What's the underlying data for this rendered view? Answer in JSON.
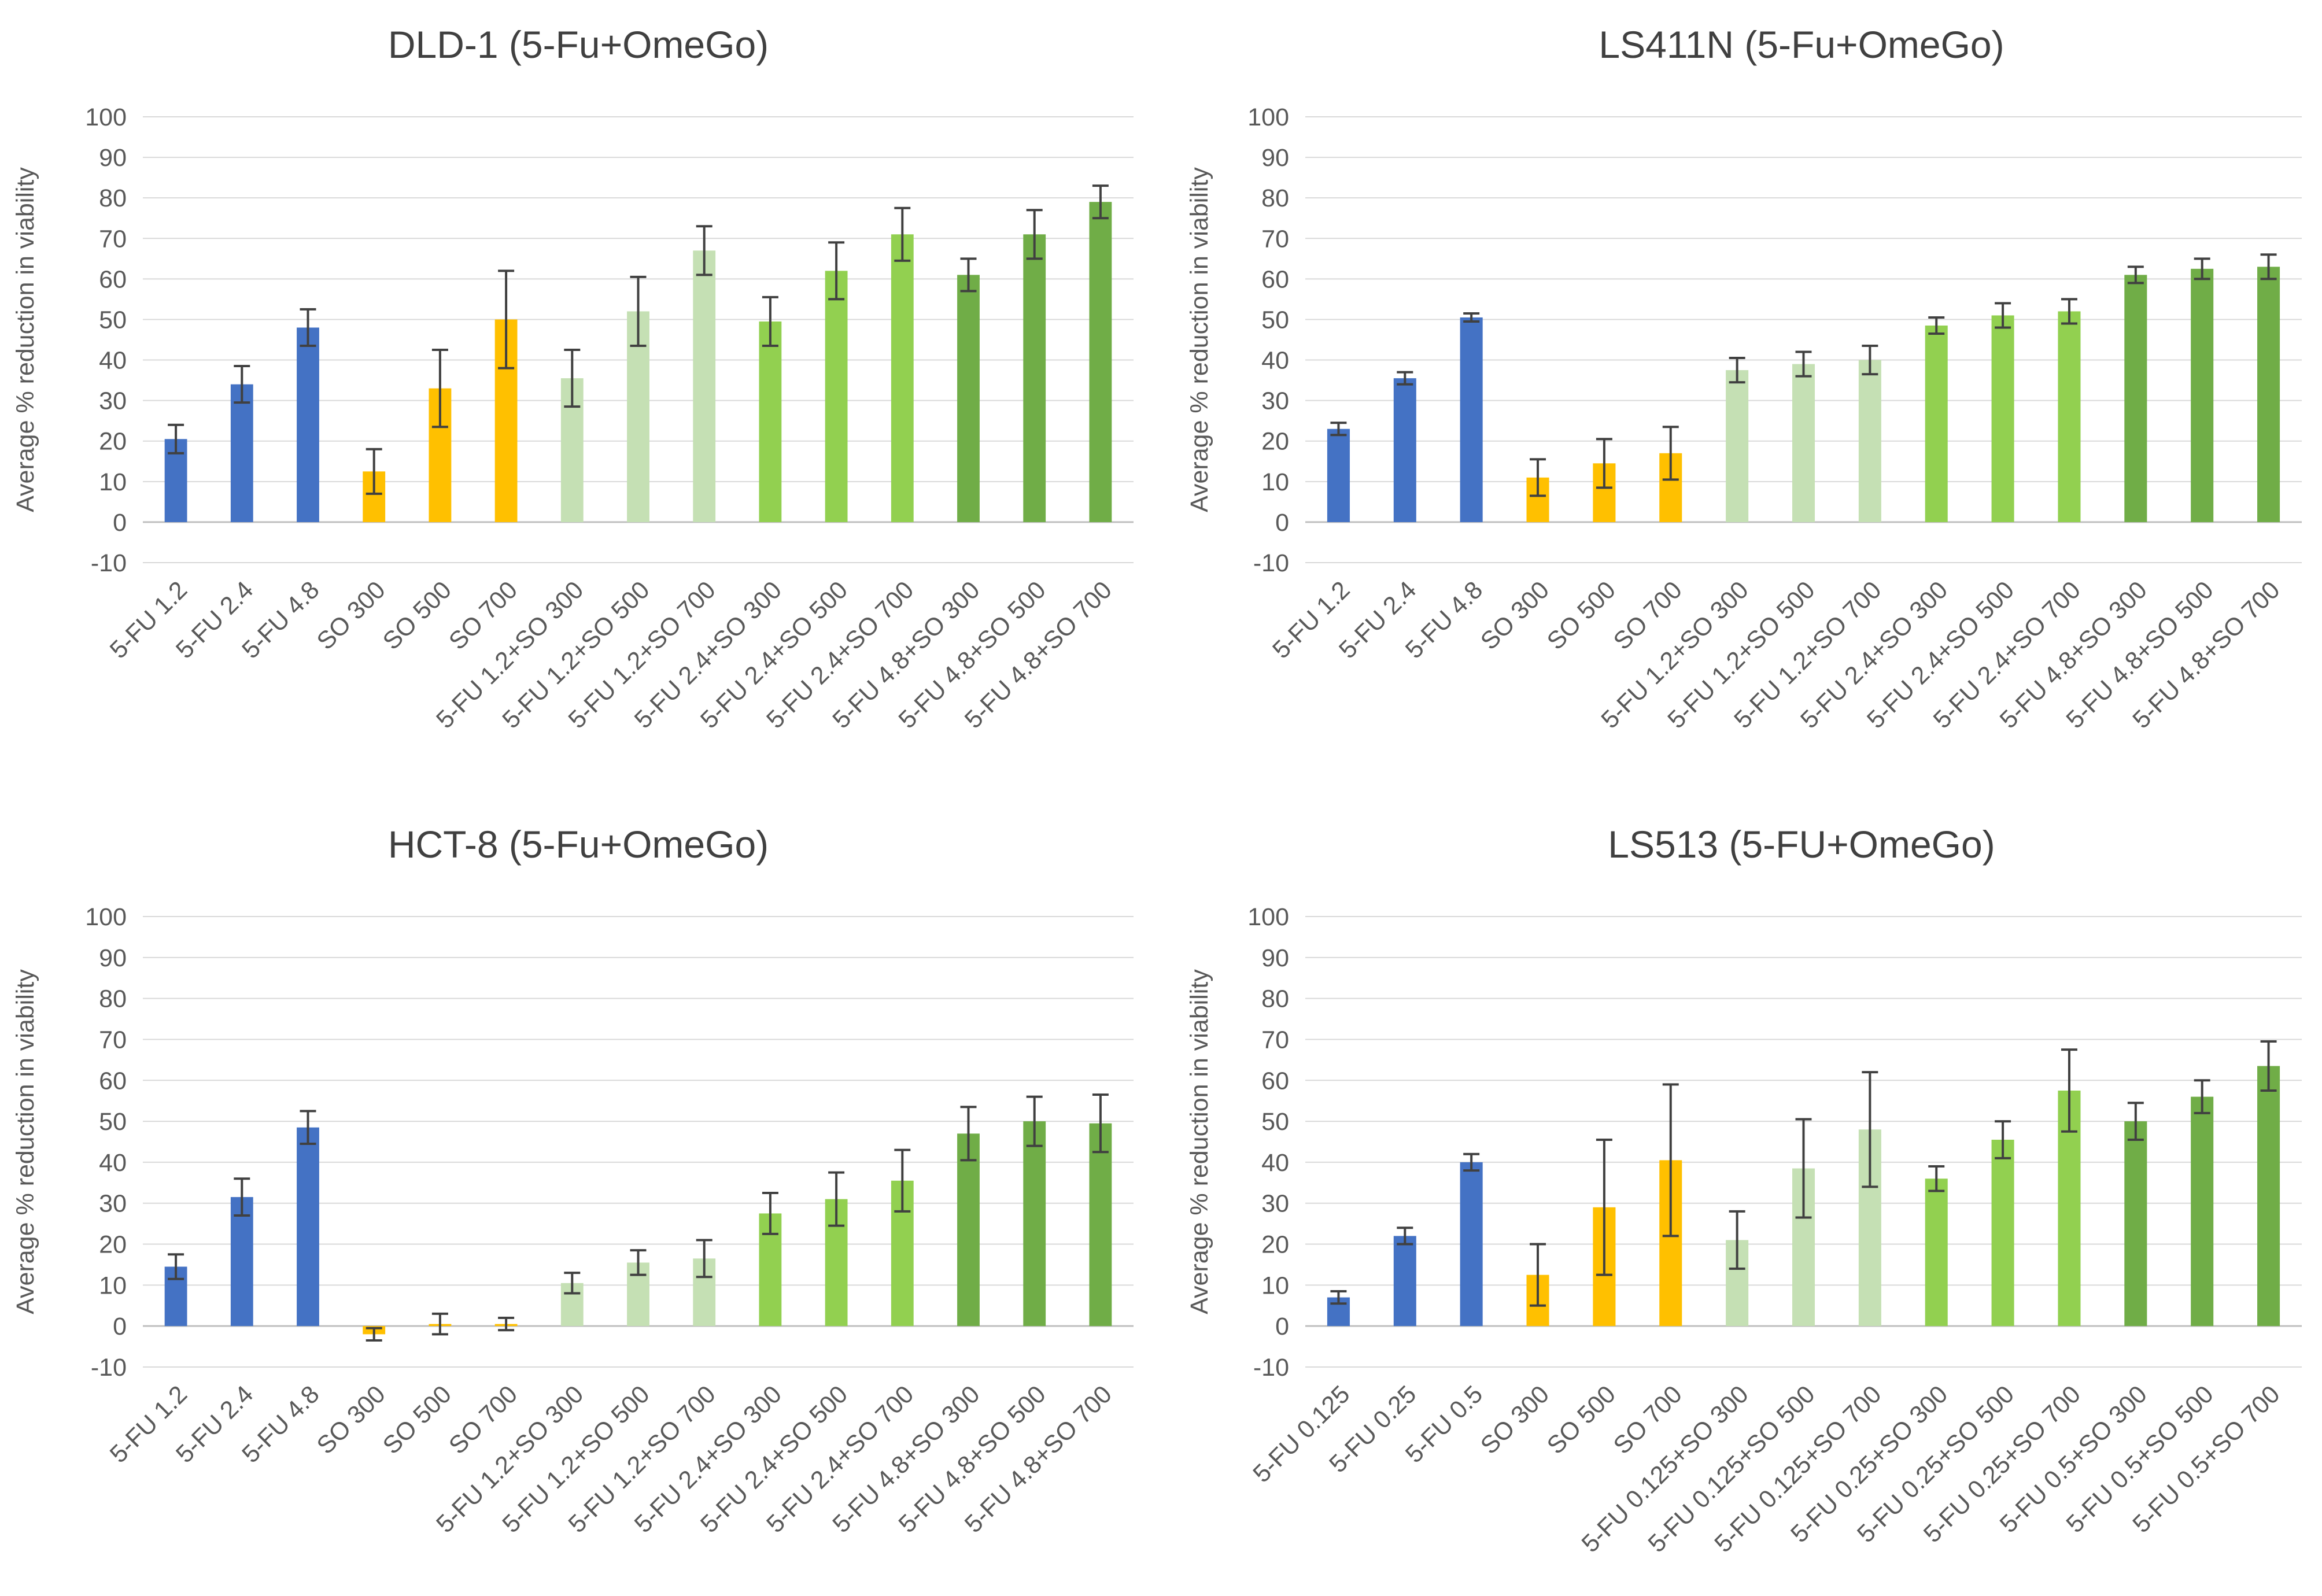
{
  "figure": {
    "colors": {
      "blue": "#4472c4",
      "yellow": "#ffc000",
      "light_green": "#c5e0b4",
      "green": "#92d050",
      "dark_green": "#70ad47",
      "grid": "#d9d9d9",
      "text": "#595959",
      "title": "#404040",
      "error": "#404040"
    }
  },
  "chart_data": [
    {
      "type": "bar",
      "title": "DLD-1 (5-Fu+OmeGo)",
      "xlabel": "",
      "ylabel": "Average % reduction in viability",
      "ylim": [
        -10,
        100
      ],
      "yticks": [
        -10,
        0,
        10,
        20,
        30,
        40,
        50,
        60,
        70,
        80,
        90,
        100
      ],
      "grid": true,
      "categories": [
        "5-FU 1.2",
        "5-FU 2.4",
        "5-FU 4.8",
        "SO 300",
        "SO 500",
        "SO 700",
        "5-FU 1.2+SO 300",
        "5-FU 1.2+SO 500",
        "5-FU 1.2+SO 700",
        "5-FU 2.4+SO 300",
        "5-FU 2.4+SO 500",
        "5-FU 2.4+SO 700",
        "5-FU 4.8+SO 300",
        "5-FU 4.8+SO 500",
        "5-FU 4.8+SO 700"
      ],
      "values": [
        20.5,
        34,
        48,
        12.5,
        33,
        50,
        35.5,
        52,
        67,
        49.5,
        62,
        71,
        61,
        71,
        79
      ],
      "errors": [
        3.5,
        4.5,
        4.5,
        5.5,
        9.5,
        12,
        7,
        8.5,
        6,
        6,
        7,
        6.5,
        4,
        6,
        4
      ],
      "bar_colors": [
        "blue",
        "blue",
        "blue",
        "yellow",
        "yellow",
        "yellow",
        "light_green",
        "light_green",
        "light_green",
        "green",
        "green",
        "green",
        "dark_green",
        "dark_green",
        "dark_green"
      ]
    },
    {
      "type": "bar",
      "title": "LS411N (5-Fu+OmeGo)",
      "xlabel": "",
      "ylabel": "Average % reduction in viability",
      "ylim": [
        -10,
        100
      ],
      "yticks": [
        -10,
        0,
        10,
        20,
        30,
        40,
        50,
        60,
        70,
        80,
        90,
        100
      ],
      "grid": true,
      "categories": [
        "5-FU 1.2",
        "5-FU 2.4",
        "5-FU 4.8",
        "SO 300",
        "SO 500",
        "SO 700",
        "5-FU 1.2+SO 300",
        "5-FU 1.2+SO 500",
        "5-FU 1.2+SO 700",
        "5-FU 2.4+SO 300",
        "5-FU 2.4+SO 500",
        "5-FU 2.4+SO 700",
        "5-FU 4.8+SO 300",
        "5-FU 4.8+SO 500",
        "5-FU 4.8+SO 700"
      ],
      "values": [
        23,
        35.5,
        50.5,
        11,
        14.5,
        17,
        37.5,
        39,
        40,
        48.5,
        51,
        52,
        61,
        62.5,
        63
      ],
      "errors": [
        1.5,
        1.5,
        1,
        4.5,
        6,
        6.5,
        3,
        3,
        3.5,
        2,
        3,
        3,
        2,
        2.5,
        3
      ],
      "bar_colors": [
        "blue",
        "blue",
        "blue",
        "yellow",
        "yellow",
        "yellow",
        "light_green",
        "light_green",
        "light_green",
        "green",
        "green",
        "green",
        "dark_green",
        "dark_green",
        "dark_green"
      ]
    },
    {
      "type": "bar",
      "title": "HCT-8 (5-Fu+OmeGo)",
      "xlabel": "",
      "ylabel": "Average % reduction in viability",
      "ylim": [
        -10,
        100
      ],
      "yticks": [
        -10,
        0,
        10,
        20,
        30,
        40,
        50,
        60,
        70,
        80,
        90,
        100
      ],
      "grid": true,
      "categories": [
        "5-FU 1.2",
        "5-FU 2.4",
        "5-FU 4.8",
        "SO 300",
        "SO 500",
        "SO 700",
        "5-FU 1.2+SO 300",
        "5-FU 1.2+SO 500",
        "5-FU 1.2+SO 700",
        "5-FU 2.4+SO 300",
        "5-FU 2.4+SO 500",
        "5-FU 2.4+SO 700",
        "5-FU 4.8+SO 300",
        "5-FU 4.8+SO 500",
        "5-FU 4.8+SO 700"
      ],
      "values": [
        14.5,
        31.5,
        48.5,
        -2,
        0.5,
        0.5,
        10.5,
        15.5,
        16.5,
        27.5,
        31,
        35.5,
        47,
        50,
        49.5
      ],
      "errors": [
        3,
        4.5,
        4,
        1.5,
        2.5,
        1.5,
        2.5,
        3,
        4.5,
        5,
        6.5,
        7.5,
        6.5,
        6,
        7
      ],
      "bar_colors": [
        "blue",
        "blue",
        "blue",
        "yellow",
        "yellow",
        "yellow",
        "light_green",
        "light_green",
        "light_green",
        "green",
        "green",
        "green",
        "dark_green",
        "dark_green",
        "dark_green"
      ]
    },
    {
      "type": "bar",
      "title": "LS513 (5-FU+OmeGo)",
      "xlabel": "",
      "ylabel": "Average % reduction in viability",
      "ylim": [
        -10,
        100
      ],
      "yticks": [
        -10,
        0,
        10,
        20,
        30,
        40,
        50,
        60,
        70,
        80,
        90,
        100
      ],
      "grid": true,
      "categories": [
        "5-FU 0.125",
        "5-FU 0.25",
        "5-FU 0.5",
        "SO 300",
        "SO 500",
        "SO 700",
        "5-FU 0.125+SO 300",
        "5-FU 0.125+SO 500",
        "5-FU 0.125+SO 700",
        "5-FU 0.25+SO 300",
        "5-FU 0.25+SO 500",
        "5-FU 0.25+SO 700",
        "5-FU 0.5+SO 300",
        "5-FU 0.5+SO 500",
        "5-FU 0.5+SO 700"
      ],
      "values": [
        7,
        22,
        40,
        12.5,
        29,
        40.5,
        21,
        38.5,
        48,
        36,
        45.5,
        57.5,
        50,
        56,
        63.5
      ],
      "errors": [
        1.5,
        2,
        2,
        7.5,
        16.5,
        18.5,
        7,
        12,
        14,
        3,
        4.5,
        10,
        4.5,
        4,
        6
      ],
      "bar_colors": [
        "blue",
        "blue",
        "blue",
        "yellow",
        "yellow",
        "yellow",
        "light_green",
        "light_green",
        "light_green",
        "green",
        "green",
        "green",
        "dark_green",
        "dark_green",
        "dark_green"
      ]
    }
  ]
}
